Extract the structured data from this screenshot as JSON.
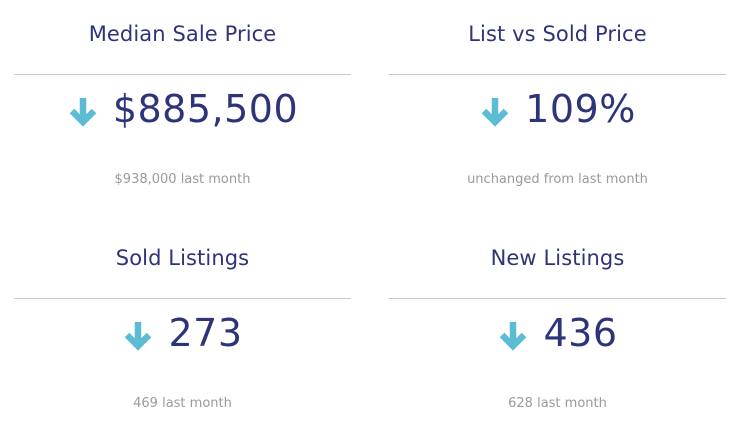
{
  "colors": {
    "title": "#2d3479",
    "value": "#2d3479",
    "arrow": "#5bbcd4",
    "sub": "#9a9a9e",
    "divider": "#c9c9cc"
  },
  "cards": [
    {
      "title": "Median Sale Price",
      "icon": "arrow-down-icon",
      "value": "$885,500",
      "sub": "$938,000 last month"
    },
    {
      "title": "List vs Sold Price",
      "icon": "arrow-down-icon",
      "value": "109%",
      "sub": "unchanged from last month"
    },
    {
      "title": "Sold Listings",
      "icon": "arrow-down-icon",
      "value": "273",
      "sub": "469 last month"
    },
    {
      "title": "New Listings",
      "icon": "arrow-down-icon",
      "value": "436",
      "sub": "628 last month"
    }
  ]
}
